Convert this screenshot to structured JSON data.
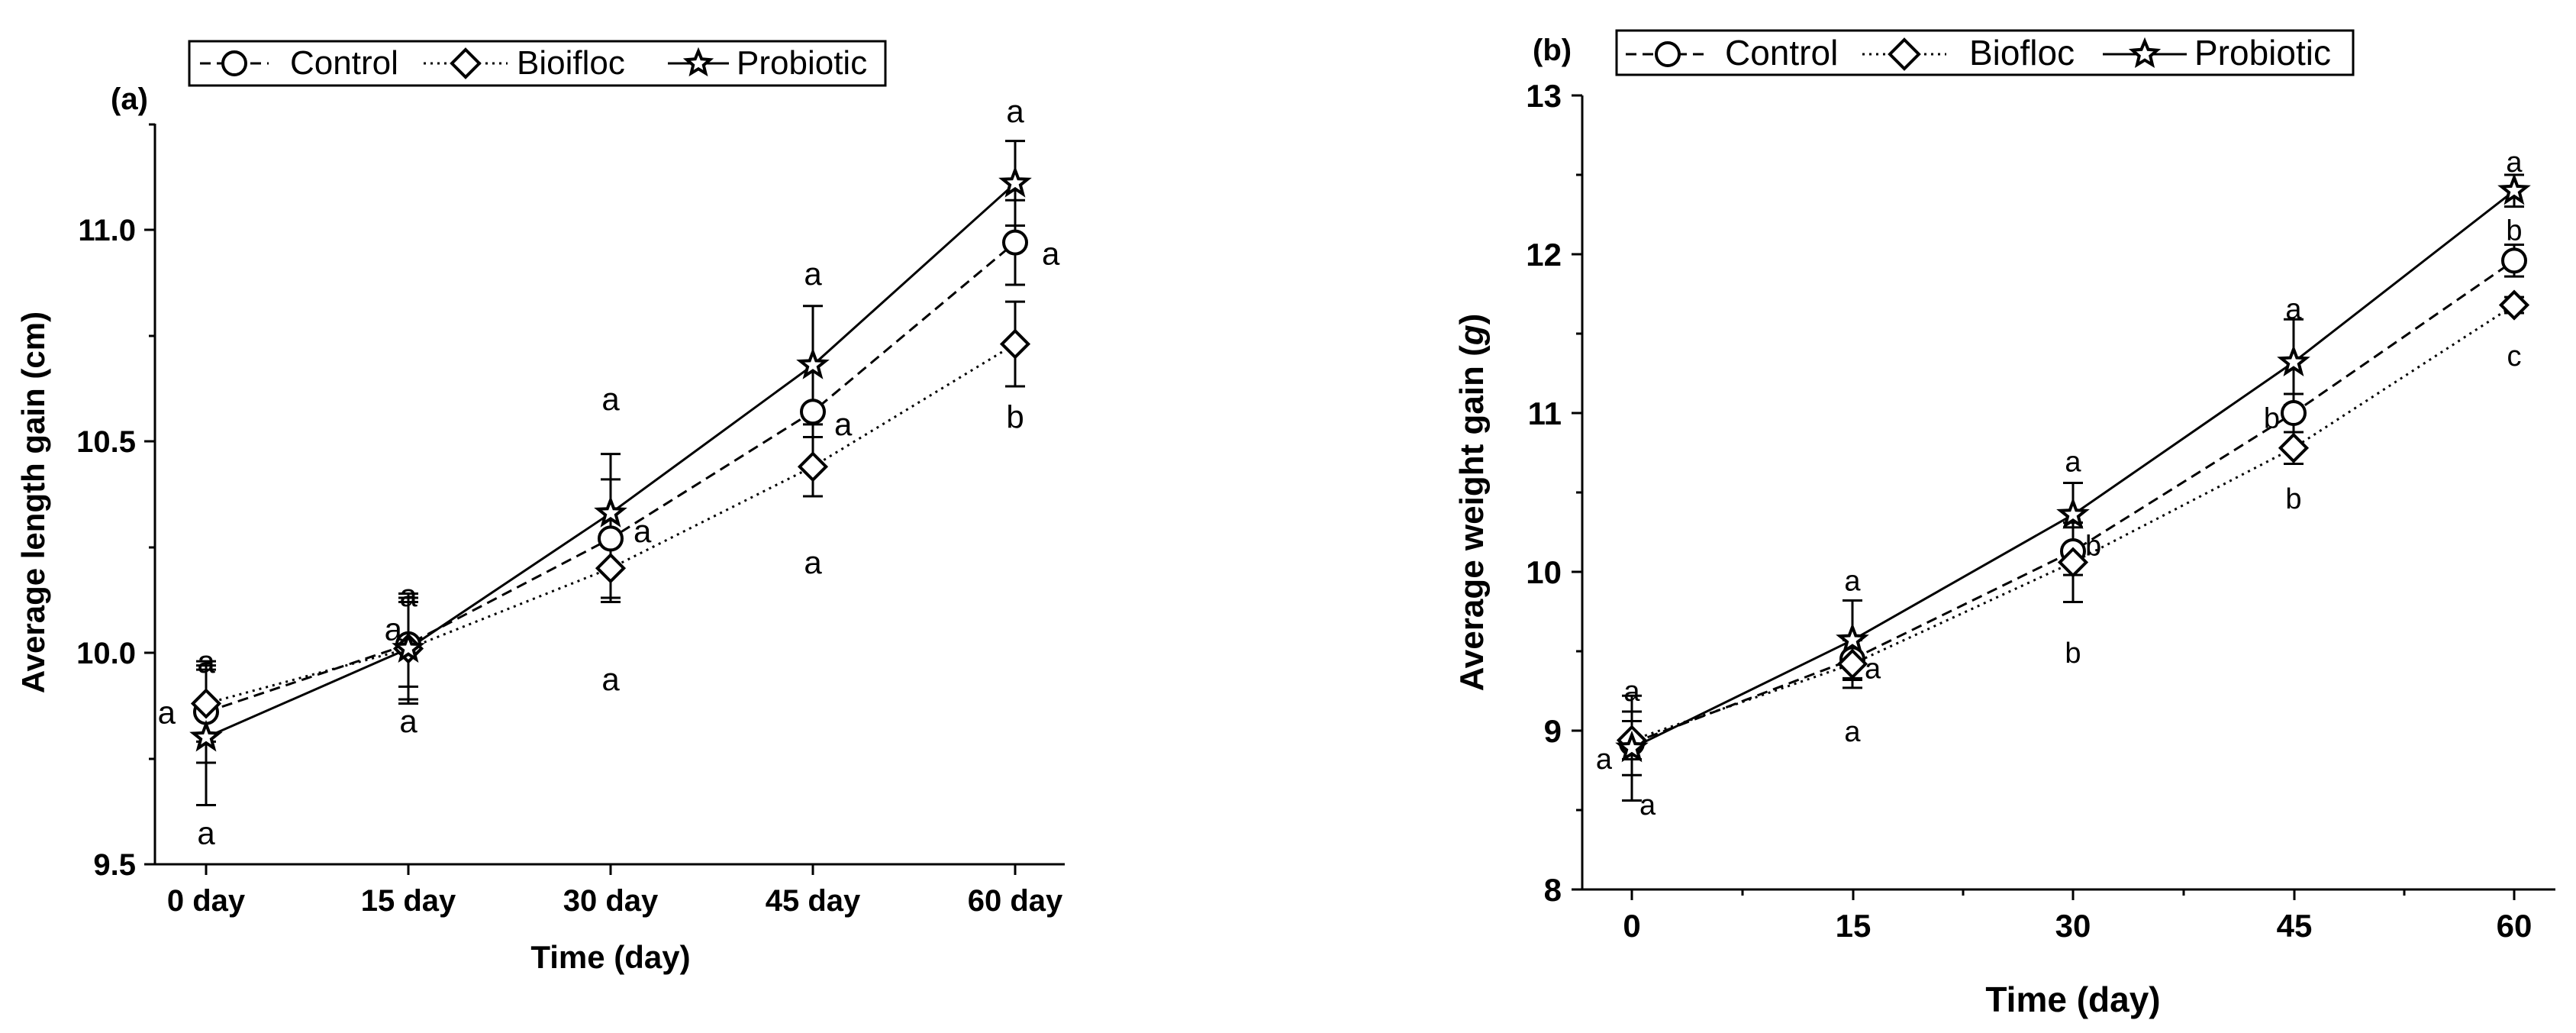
{
  "figure": {
    "panels": [
      {
        "panel_label": "(a)",
        "legend": [
          "Control",
          "Bioifloc",
          "Probiotic"
        ],
        "xlabel": "Time (day)",
        "ylabel": "Average length gain (cm)",
        "yticks": [
          "9.5",
          "10.0",
          "10.5",
          "11.0"
        ],
        "xticks": [
          "0 day",
          "15 day",
          "30 day",
          "45 day",
          "60 day"
        ]
      },
      {
        "panel_label": "(b)",
        "legend": [
          "Control",
          "Biofloc",
          "Probiotic"
        ],
        "xlabel": "Time (day)",
        "ylabel": "Average weight gain (g)",
        "ylabel_main": "Average weight gain (",
        "ylabel_unit": "g",
        "ylabel_end": ")",
        "yticks": [
          "8",
          "9",
          "10",
          "11",
          "12",
          "13"
        ],
        "xticks": [
          "0",
          "15",
          "30",
          "45",
          "60"
        ]
      }
    ]
  },
  "chart_data": [
    {
      "type": "line",
      "panel": "(a)",
      "title": "",
      "xlabel": "Time (day)",
      "ylabel": "Average length gain (cm)",
      "categories": [
        "0 day",
        "15 day",
        "30 day",
        "45 day",
        "60 day"
      ],
      "x": [
        0,
        15,
        30,
        45,
        60
      ],
      "xlim": [
        -5,
        65
      ],
      "ylim": [
        9.5,
        11.25
      ],
      "grid": false,
      "legend_position": "top",
      "series": [
        {
          "name": "Control",
          "marker": "circle",
          "line_style": "dashed",
          "values": [
            9.86,
            10.02,
            10.27,
            10.57,
            10.97
          ],
          "errors": [
            0.12,
            0.1,
            0.14,
            0.12,
            0.1
          ],
          "labels": [
            "a",
            "a",
            "a",
            "a",
            "a"
          ]
        },
        {
          "name": "Bioifloc",
          "marker": "diamond",
          "line_style": "dotted",
          "values": [
            9.88,
            10.01,
            10.2,
            10.44,
            10.73
          ],
          "errors": [
            0.09,
            0.12,
            0.08,
            0.07,
            0.1
          ],
          "labels": [
            "a",
            "a",
            "a",
            "a",
            "b"
          ]
        },
        {
          "name": "Probiotic",
          "marker": "star",
          "line_style": "solid",
          "values": [
            9.8,
            10.01,
            10.33,
            10.68,
            11.11
          ],
          "errors": [
            0.16,
            0.13,
            0.14,
            0.14,
            0.1
          ],
          "labels": [
            "a",
            "a",
            "a",
            "a",
            "a"
          ]
        }
      ]
    },
    {
      "type": "line",
      "panel": "(b)",
      "title": "",
      "xlabel": "Time (day)",
      "ylabel": "Average weight gain (g)",
      "categories": [
        "0",
        "15",
        "30",
        "45",
        "60"
      ],
      "x": [
        0,
        15,
        30,
        45,
        60
      ],
      "xlim": [
        -4,
        64
      ],
      "ylim": [
        8,
        13
      ],
      "grid": false,
      "legend_position": "top",
      "series": [
        {
          "name": "Control",
          "marker": "circle",
          "line_style": "dashed",
          "values": [
            8.92,
            9.45,
            10.13,
            11.0,
            11.96
          ],
          "errors": [
            0.2,
            0.12,
            0.15,
            0.12,
            0.1
          ],
          "labels": [
            "a",
            "a",
            "b",
            "b",
            "b"
          ]
        },
        {
          "name": "Biofloc",
          "marker": "diamond",
          "line_style": "dotted",
          "values": [
            8.94,
            9.42,
            10.06,
            10.78,
            11.68
          ],
          "errors": [
            0.12,
            0.15,
            0.25,
            0.1,
            0.05
          ],
          "labels": [
            "a",
            "a",
            "b",
            "b",
            "c"
          ]
        },
        {
          "name": "Probiotic",
          "marker": "star",
          "line_style": "solid",
          "values": [
            8.89,
            9.57,
            10.36,
            11.32,
            12.4
          ],
          "errors": [
            0.33,
            0.25,
            0.2,
            0.27,
            0.1
          ],
          "labels": [
            "a",
            "a",
            "a",
            "a",
            "a"
          ]
        }
      ]
    }
  ]
}
